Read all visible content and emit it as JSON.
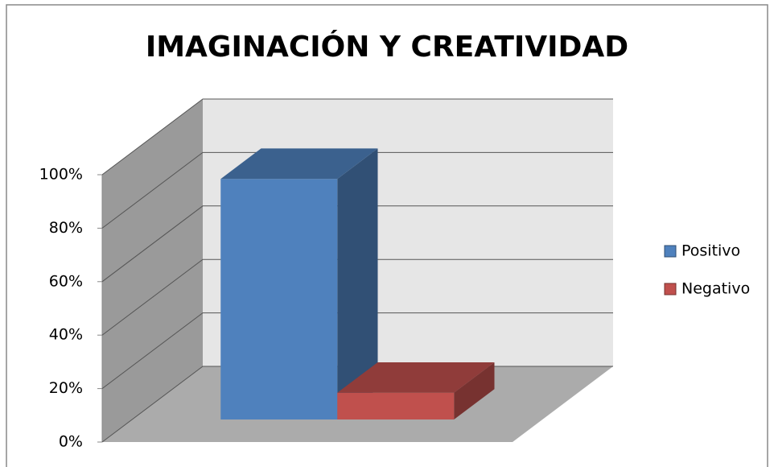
{
  "chart_data": {
    "type": "bar3d",
    "title": "IMAGINACIÓN Y CREATIVIDAD",
    "categories": [
      null
    ],
    "series": [
      {
        "name": "Positivo",
        "color": "#4f81bd",
        "values": [
          90
        ]
      },
      {
        "name": "Negativo",
        "color": "#c0504d",
        "values": [
          10
        ]
      }
    ],
    "ylim": [
      0,
      100
    ],
    "yticks": [
      {
        "value": 0,
        "label": "0%"
      },
      {
        "value": 20,
        "label": "20%"
      },
      {
        "value": 40,
        "label": "40%"
      },
      {
        "value": 60,
        "label": "60%"
      },
      {
        "value": 80,
        "label": "80%"
      },
      {
        "value": 100,
        "label": "100%"
      }
    ],
    "grid": true,
    "legend": "right"
  }
}
